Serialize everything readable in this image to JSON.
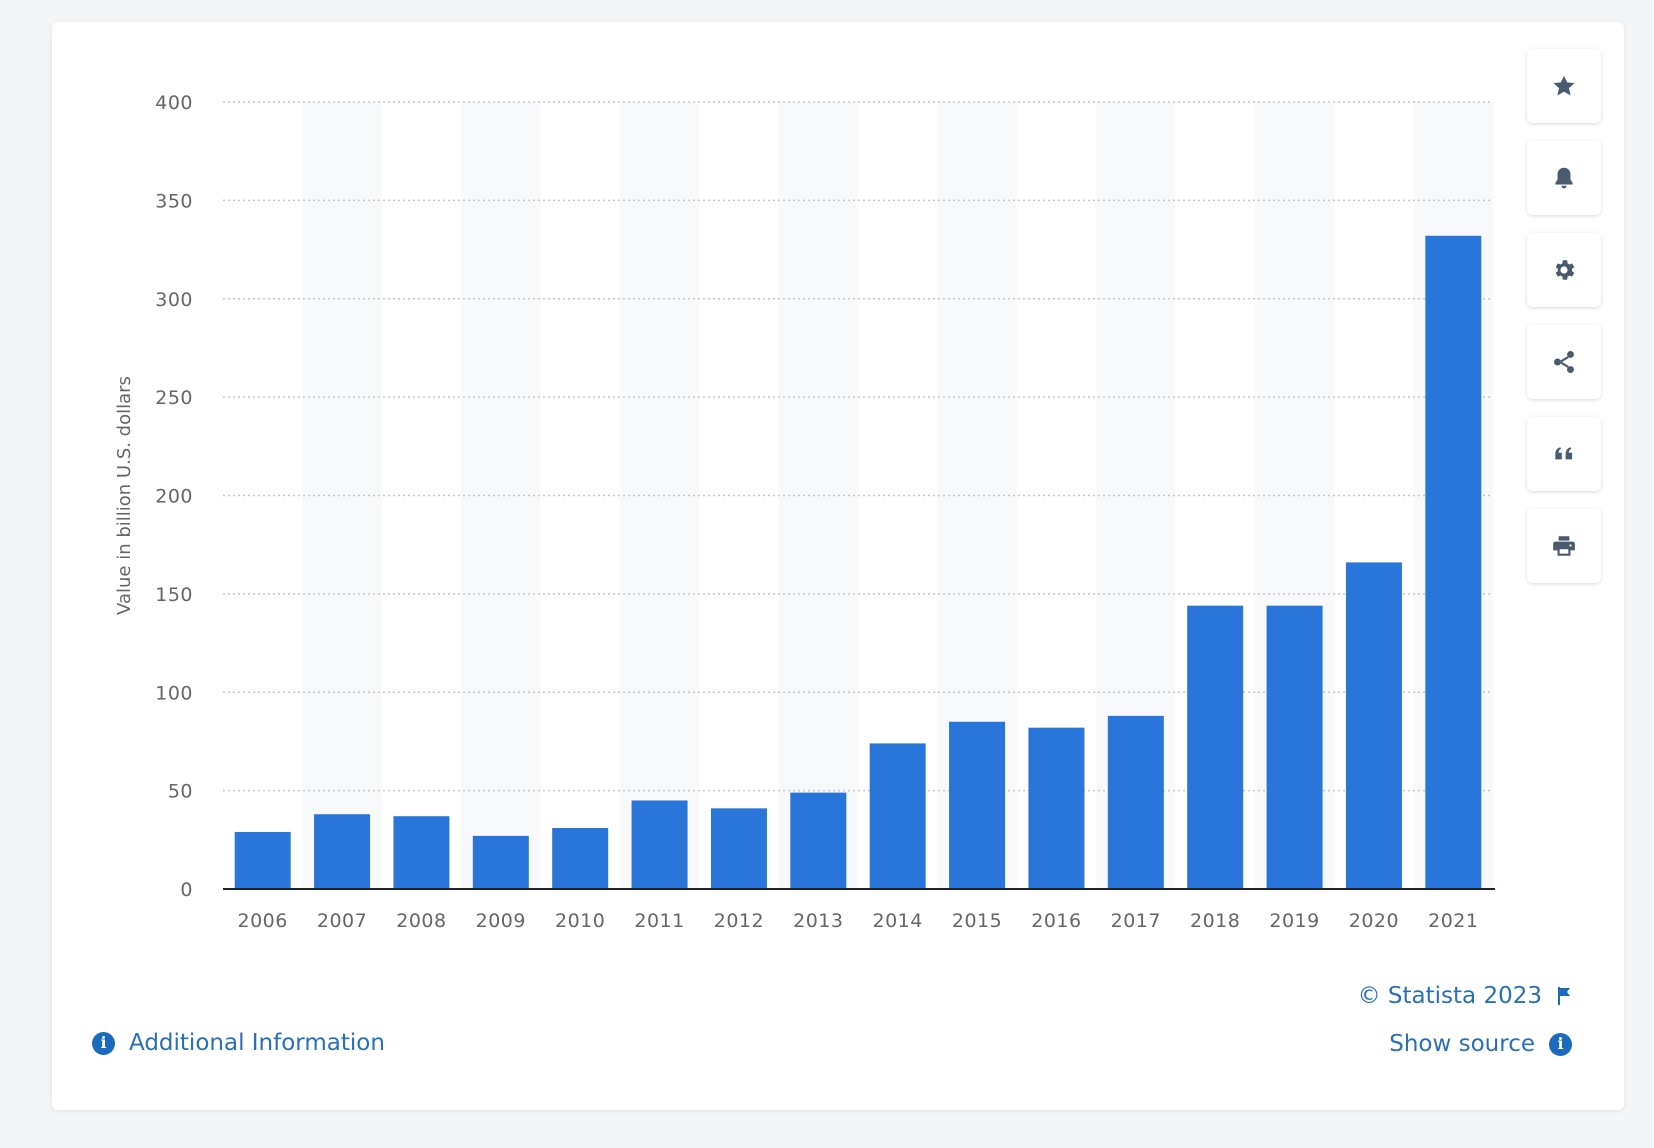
{
  "chart_data": {
    "type": "bar",
    "categories": [
      "2006",
      "2007",
      "2008",
      "2009",
      "2010",
      "2011",
      "2012",
      "2013",
      "2014",
      "2015",
      "2016",
      "2017",
      "2018",
      "2019",
      "2020",
      "2021"
    ],
    "values": [
      29,
      38,
      37,
      27,
      31,
      45,
      41,
      49,
      74,
      85,
      82,
      88,
      144,
      144,
      166,
      332
    ],
    "title": "",
    "xlabel": "",
    "ylabel": "Value in billion U.S. dollars",
    "ylim": [
      0,
      400
    ],
    "yticks": [
      0,
      50,
      100,
      150,
      200,
      250,
      300,
      350,
      400
    ],
    "grid": true,
    "bar_color": "#2a75d9"
  },
  "toolbar": {
    "buttons": [
      {
        "name": "favorite-button",
        "icon": "star-icon"
      },
      {
        "name": "notification-button",
        "icon": "bell-icon"
      },
      {
        "name": "settings-button",
        "icon": "gear-icon"
      },
      {
        "name": "share-button",
        "icon": "share-icon"
      },
      {
        "name": "cite-button",
        "icon": "quote-icon"
      },
      {
        "name": "print-button",
        "icon": "printer-icon"
      }
    ]
  },
  "footer": {
    "additional_info_label": "Additional Information",
    "copyright": "© Statista 2023",
    "show_source_label": "Show source",
    "info_glyph": "i"
  },
  "colors": {
    "accent": "#2a6fba",
    "bar": "#2a75d9",
    "icon": "#4a5b70"
  }
}
